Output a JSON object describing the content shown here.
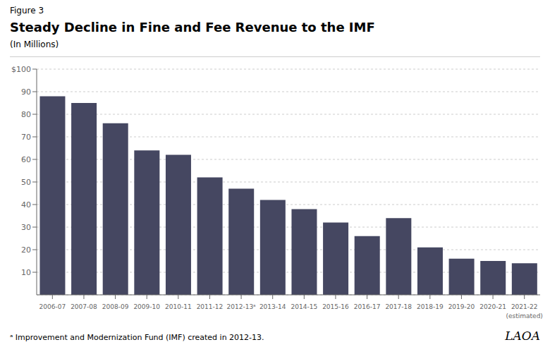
{
  "chart_data": {
    "type": "bar",
    "figure_label": "Figure 3",
    "title": "Steady Decline in Fine and Fee Revenue to the IMF",
    "subtitle": "(In Millions)",
    "categories": [
      "2006-07",
      "2007-08",
      "2008-09",
      "2009-10",
      "2010-11",
      "2011-12",
      "2012-13ᵃ",
      "2013-14",
      "2014-15",
      "2015-16",
      "2016-17",
      "2017-18",
      "2018-19",
      "2019-20",
      "2020-21",
      "2021-22"
    ],
    "values": [
      88,
      85,
      76,
      64,
      62,
      52,
      47,
      42,
      38,
      32,
      26,
      34,
      21,
      16,
      15,
      14
    ],
    "color": "#454761",
    "ylim": [
      0,
      100
    ],
    "yticks": [
      10,
      20,
      30,
      40,
      50,
      60,
      70,
      80,
      90,
      {
        "value": 100,
        "label": "$100"
      }
    ],
    "grid": true,
    "estimated_label": "(estimated)",
    "footnote": "ᵃ Improvement and Modernization Fund (IMF) created in 2012-13.",
    "source_label": "LAOA"
  }
}
